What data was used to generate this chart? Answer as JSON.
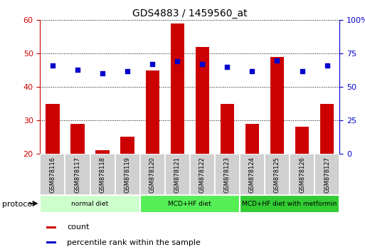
{
  "title": "GDS4883 / 1459560_at",
  "samples": [
    "GSM878116",
    "GSM878117",
    "GSM878118",
    "GSM878119",
    "GSM878120",
    "GSM878121",
    "GSM878122",
    "GSM878123",
    "GSM878124",
    "GSM878125",
    "GSM878126",
    "GSM878127"
  ],
  "counts": [
    35,
    29,
    21,
    25,
    45,
    59,
    52,
    35,
    29,
    49,
    28,
    35
  ],
  "percentiles": [
    66,
    63,
    60,
    62,
    67,
    69,
    67,
    65,
    62,
    70,
    62,
    66
  ],
  "ylim_left": [
    20,
    60
  ],
  "ylim_right": [
    0,
    100
  ],
  "yticks_left": [
    20,
    30,
    40,
    50,
    60
  ],
  "yticks_right": [
    0,
    25,
    50,
    75,
    100
  ],
  "bar_color": "#cc0000",
  "dot_color": "#0000cc",
  "bar_bottom": 20,
  "groups": [
    {
      "label": "normal diet",
      "start": 0,
      "end": 4,
      "color": "#ccffcc"
    },
    {
      "label": "MCD+HF diet",
      "start": 4,
      "end": 8,
      "color": "#55ee55"
    },
    {
      "label": "MCD+HF diet with metformin",
      "start": 8,
      "end": 12,
      "color": "#33cc33"
    }
  ],
  "protocol_label": "protocol",
  "left_axis_color": "#cc0000",
  "right_axis_color": "#0000cc",
  "legend_count_label": "count",
  "legend_pct_label": "percentile rank within the sample"
}
